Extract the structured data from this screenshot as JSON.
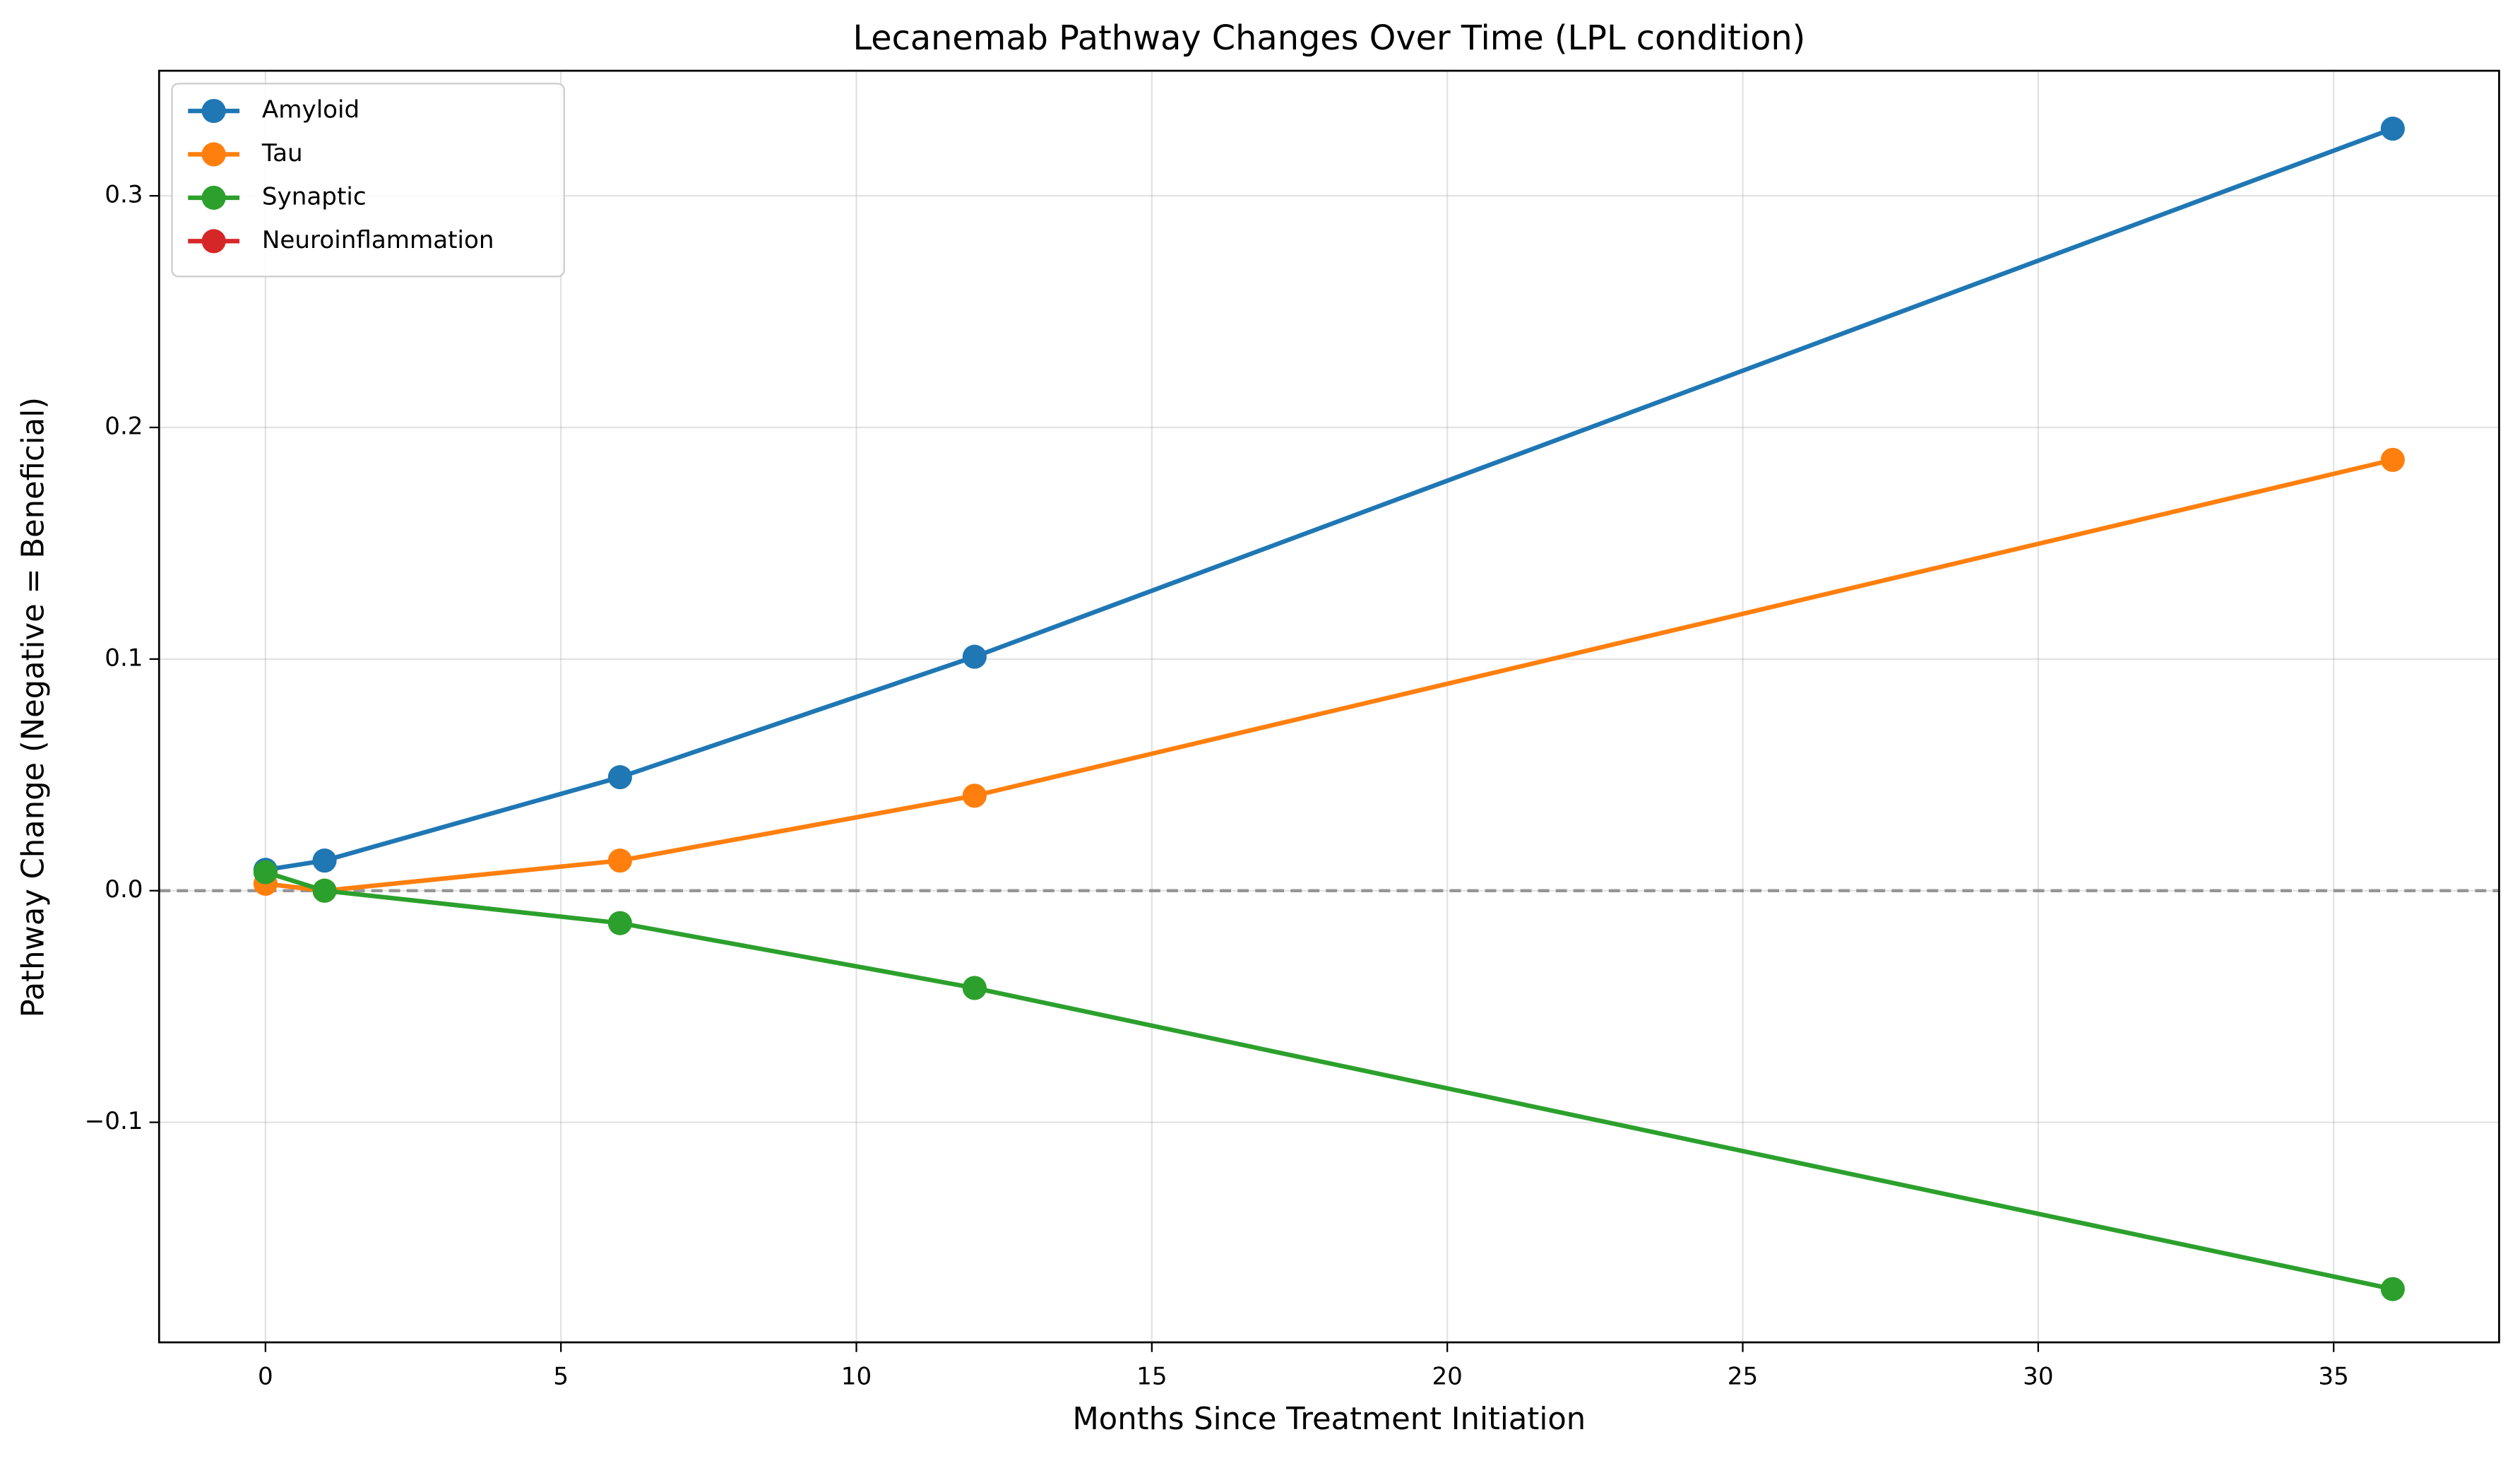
{
  "chart_data": {
    "type": "line",
    "title": "Lecanemab Pathway Changes Over Time (LPL condition)",
    "x_label": "Months Since Treatment Initiation",
    "y_label": "Pathway Change (Negative = Beneficial)",
    "x": [
      0,
      1,
      6,
      12,
      36
    ],
    "series": [
      {
        "name": "Amyloid",
        "color": "#1f77b4",
        "values": [
          0.009,
          0.013,
          0.049,
          0.101,
          0.329
        ]
      },
      {
        "name": "Tau",
        "color": "#ff7f0e",
        "values": [
          0.003,
          0.0,
          0.013,
          0.041,
          0.186
        ]
      },
      {
        "name": "Synaptic",
        "color": "#2ca02c",
        "values": [
          0.008,
          0.0,
          -0.014,
          -0.042,
          -0.172
        ]
      },
      {
        "name": "Neuroinflammation",
        "color": "#d62728",
        "values": [
          null,
          null,
          null,
          null,
          null
        ]
      }
    ],
    "xlim": [
      -1.8,
      37.8
    ],
    "ylim": [
      -0.195,
      0.354
    ],
    "xticks": [
      0,
      5,
      10,
      15,
      20,
      25,
      30,
      35
    ],
    "yticks": [
      {
        "value": -0.1,
        "label": "−0.1"
      },
      {
        "value": 0,
        "label": "0.0"
      },
      0.1,
      0.2,
      0.3
    ],
    "hline": 0,
    "grid": true,
    "legend": "upper left"
  }
}
